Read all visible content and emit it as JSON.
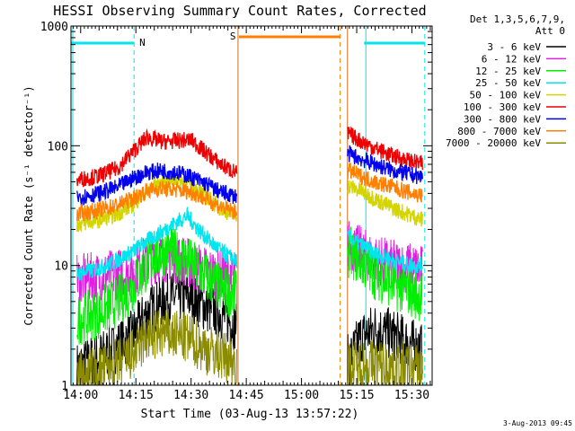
{
  "chart_data": {
    "type": "line",
    "title": "HESSI Observing Summary Count Rates, Corrected",
    "xlabel": "Start Time (03-Aug-13 13:57:22)",
    "ylabel": "Corrected Count Rate (s⁻¹ detector⁻¹)",
    "yscale": "log",
    "xlim": [
      "13:57:22",
      "15:35:30"
    ],
    "ylim": [
      1,
      1000
    ],
    "x_ticks": [
      "14:00",
      "14:15",
      "14:30",
      "14:45",
      "15:00",
      "15:15",
      "15:30"
    ],
    "y_ticks": [
      "1",
      "10",
      "100",
      "1000"
    ],
    "legend_title": [
      "Det 1,3,5,6,7,9,",
      "Att 0"
    ],
    "legend_position": "right",
    "timestamp": "3-Aug-2013 09:45",
    "gaps": [
      [
        "14:42:30",
        "15:12:30"
      ]
    ],
    "annotations": {
      "N_label": "N",
      "S_label": "S",
      "night_bands": [
        [
          "13:57:22",
          "14:14:30"
        ],
        [
          "15:17:00",
          "15:33:30"
        ]
      ],
      "saa_band": [
        "14:43:00",
        "15:10:30"
      ],
      "night_color": "#00e5ee",
      "saa_color": "#ff7f00",
      "marker_color": "#c8701e"
    },
    "series": [
      {
        "name": "3 - 6 keV",
        "color": "#000000",
        "x": [
          "13:59",
          "14:03",
          "14:09",
          "14:14",
          "14:18",
          "14:22",
          "14:26",
          "14:30",
          "14:34",
          "14:38",
          "14:42",
          "15:13",
          "15:16",
          "15:20",
          "15:25",
          "15:30",
          "15:33"
        ],
        "y": [
          1.4,
          1.6,
          2.0,
          2.6,
          4.0,
          5.0,
          5.5,
          5.5,
          4.5,
          4.0,
          3.2,
          1.6,
          2.5,
          3.0,
          2.6,
          2.2,
          2.0
        ]
      },
      {
        "name": "6 - 12 keV",
        "color": "#e020e0",
        "x": [
          "13:59",
          "14:05",
          "14:10",
          "14:14",
          "14:17",
          "14:20",
          "14:24",
          "14:28",
          "14:32",
          "14:36",
          "14:42",
          "15:13",
          "15:16",
          "15:20",
          "15:25",
          "15:30",
          "15:33"
        ],
        "y": [
          7.5,
          8.0,
          8.5,
          9.0,
          10.5,
          11.5,
          12.0,
          11.0,
          9.5,
          8.5,
          8.0,
          15,
          13,
          11,
          10,
          9.5,
          9.0
        ]
      },
      {
        "name": "12 - 25 keV",
        "color": "#00ee00",
        "x": [
          "13:59",
          "14:05",
          "14:10",
          "14:14",
          "14:17",
          "14:20",
          "14:24",
          "14:28",
          "14:32",
          "14:36",
          "14:42",
          "15:13",
          "15:16",
          "15:20",
          "15:25",
          "15:30",
          "15:33"
        ],
        "y": [
          3.5,
          4.0,
          5.0,
          6.5,
          9.0,
          12.0,
          13.0,
          11.5,
          9.0,
          7.0,
          5.5,
          13,
          11,
          8.5,
          7.0,
          6.0,
          5.5
        ]
      },
      {
        "name": "25 - 50 keV",
        "color": "#00e5ee",
        "x": [
          "13:59",
          "14:05",
          "14:10",
          "14:14",
          "14:18",
          "14:22",
          "14:26",
          "14:29",
          "14:32",
          "14:36",
          "14:40",
          "14:42",
          "15:13",
          "15:16",
          "15:20",
          "15:25",
          "15:30",
          "15:33"
        ],
        "y": [
          8.5,
          9.5,
          11,
          13,
          16,
          19,
          23,
          26,
          20,
          15,
          12,
          11,
          17,
          15,
          12.5,
          11,
          10,
          10
        ]
      },
      {
        "name": "50 - 100 keV",
        "color": "#d4d400",
        "x": [
          "13:59",
          "14:05",
          "14:10",
          "14:14",
          "14:18",
          "14:22",
          "14:26",
          "14:30",
          "14:34",
          "14:38",
          "14:42",
          "15:13",
          "15:16",
          "15:20",
          "15:25",
          "15:30",
          "15:33"
        ],
        "y": [
          22,
          24,
          27,
          32,
          42,
          50,
          52,
          48,
          38,
          30,
          26,
          46,
          42,
          36,
          30,
          26,
          24
        ]
      },
      {
        "name": "100 - 300 keV",
        "color": "#ee0000",
        "x": [
          "13:59",
          "14:05",
          "14:10",
          "14:14",
          "14:18",
          "14:22",
          "14:26",
          "14:30",
          "14:34",
          "14:38",
          "14:42",
          "15:13",
          "15:16",
          "15:20",
          "15:25",
          "15:30",
          "15:33"
        ],
        "y": [
          52,
          56,
          65,
          88,
          118,
          108,
          110,
          112,
          88,
          70,
          60,
          125,
          110,
          95,
          82,
          74,
          70
        ]
      },
      {
        "name": "300 - 800 keV",
        "color": "#0000ee",
        "x": [
          "13:59",
          "14:05",
          "14:10",
          "14:14",
          "14:18",
          "14:22",
          "14:26",
          "14:30",
          "14:34",
          "14:38",
          "14:42",
          "15:13",
          "15:16",
          "15:20",
          "15:25",
          "15:30",
          "15:33"
        ],
        "y": [
          37,
          40,
          45,
          53,
          60,
          62,
          60,
          55,
          48,
          41,
          38,
          85,
          78,
          70,
          62,
          57,
          55
        ]
      },
      {
        "name": "800 - 7000 keV",
        "color": "#ff7f00",
        "x": [
          "13:59",
          "14:05",
          "14:10",
          "14:14",
          "14:18",
          "14:22",
          "14:26",
          "14:30",
          "14:34",
          "14:38",
          "14:42",
          "15:13",
          "15:16",
          "15:20",
          "15:25",
          "15:30",
          "15:33"
        ],
        "y": [
          27,
          29,
          32,
          36,
          42,
          44,
          43,
          41,
          36,
          31,
          28,
          62,
          56,
          50,
          45,
          40,
          38
        ]
      },
      {
        "name": "7000 - 20000 keV",
        "color": "#8b8b00",
        "x": [
          "13:59",
          "14:05",
          "14:10",
          "14:14",
          "14:18",
          "14:22",
          "14:26",
          "14:30",
          "14:34",
          "14:38",
          "14:42",
          "15:13",
          "15:16",
          "15:20",
          "15:25",
          "15:30",
          "15:33"
        ],
        "y": [
          1.2,
          1.3,
          1.5,
          1.8,
          2.5,
          2.7,
          2.6,
          2.4,
          2.0,
          1.8,
          1.6,
          1.4,
          1.5,
          1.5,
          1.4,
          1.4,
          1.3
        ]
      }
    ]
  }
}
